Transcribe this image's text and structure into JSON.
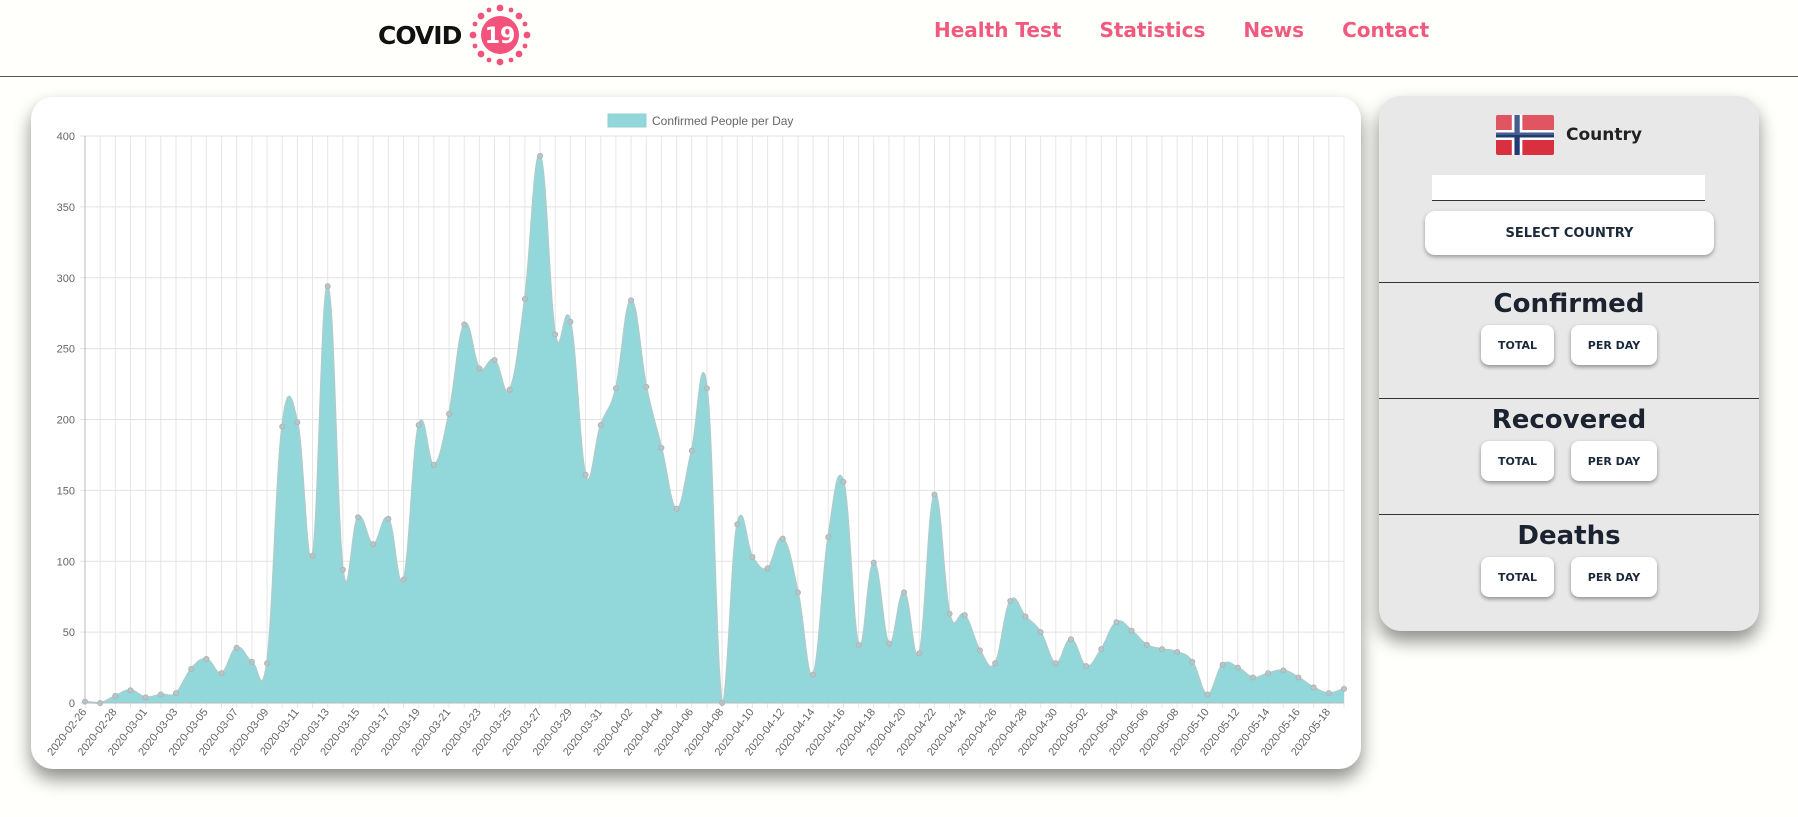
{
  "header": {
    "logo_text": "COVID",
    "logo_number": "19",
    "logo_color": "#f2527b",
    "nav": [
      "Health Test",
      "Statistics",
      "News",
      "Contact"
    ],
    "nav_color": "#f05a7e"
  },
  "panel": {
    "country_label": "Country",
    "flag_icon": "norway-flag-icon",
    "country_input_value": "",
    "select_button": "SELECT COUNTRY",
    "sections": [
      {
        "title": "Confirmed",
        "total_label": "TOTAL",
        "per_day_label": "PER DAY"
      },
      {
        "title": "Recovered",
        "total_label": "TOTAL",
        "per_day_label": "PER DAY"
      },
      {
        "title": "Deaths",
        "total_label": "TOTAL",
        "per_day_label": "PER DAY"
      }
    ]
  },
  "chart_data": {
    "type": "area",
    "legend": "Confirmed People per Day",
    "legend_position": "top",
    "fill_color": "#92d8da",
    "line_color": "#a7cfd0",
    "point_color": "#b9c4c6",
    "grid": true,
    "ylim": [
      0,
      400
    ],
    "yticks": [
      0,
      50,
      100,
      150,
      200,
      250,
      300,
      350,
      400
    ],
    "start_date": "2020-02-26",
    "x_tick_labels": [
      "2020-02-26",
      "2020-02-28",
      "2020-03-01",
      "2020-03-03",
      "2020-03-05",
      "2020-03-07",
      "2020-03-09",
      "2020-03-11",
      "2020-03-13",
      "2020-03-15",
      "2020-03-17",
      "2020-03-19",
      "2020-03-21",
      "2020-03-23",
      "2020-03-25",
      "2020-03-27",
      "2020-03-29",
      "2020-03-31",
      "2020-04-02",
      "2020-04-04",
      "2020-04-06",
      "2020-04-08",
      "2020-04-10",
      "2020-04-12",
      "2020-04-14",
      "2020-04-16",
      "2020-04-18",
      "2020-04-20",
      "2020-04-22",
      "2020-04-24",
      "2020-04-26",
      "2020-04-28",
      "2020-04-30",
      "2020-05-02",
      "2020-05-04",
      "2020-05-06",
      "2020-05-08",
      "2020-05-10",
      "2020-05-12",
      "2020-05-14",
      "2020-05-16",
      "2020-05-18"
    ],
    "values": [
      1,
      0,
      5,
      9,
      4,
      6,
      7,
      24,
      31,
      21,
      39,
      29,
      28,
      195,
      198,
      104,
      294,
      94,
      131,
      112,
      130,
      87,
      196,
      168,
      204,
      267,
      236,
      242,
      221,
      285,
      386,
      260,
      269,
      161,
      196,
      222,
      284,
      223,
      180,
      137,
      178,
      222,
      0,
      126,
      103,
      95,
      116,
      78,
      20,
      117,
      156,
      41,
      99,
      42,
      78,
      35,
      147,
      63,
      62,
      37,
      28,
      72,
      61,
      50,
      28,
      45,
      26,
      38,
      57,
      51,
      41,
      38,
      36,
      29,
      6,
      27,
      25,
      18,
      21,
      23,
      18,
      11,
      7,
      10
    ]
  }
}
